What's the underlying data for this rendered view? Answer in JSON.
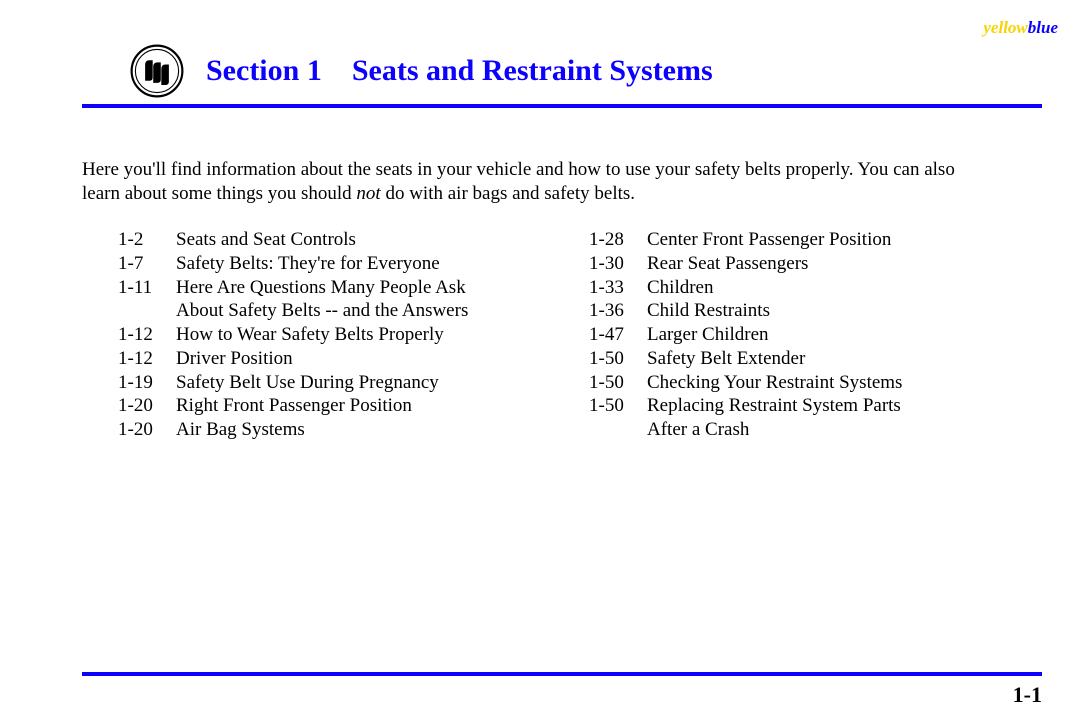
{
  "corner": {
    "yellow": "yellow",
    "blue": "blue"
  },
  "header": {
    "section_label": "Section 1",
    "title": "Seats and Restraint Systems"
  },
  "colors": {
    "accent": "#0c00ff",
    "yellow": "#f5d400",
    "text": "#000000",
    "background": "#ffffff"
  },
  "intro": {
    "line1": "Here you'll find information about the seats in your vehicle and how to use your safety belts properly. You can also",
    "line2a": "learn about some things you should ",
    "not": "not",
    "line2b": " do with air bags and safety belts."
  },
  "toc": {
    "left": [
      {
        "page": "1-2",
        "text": "Seats and Seat Controls"
      },
      {
        "page": "1-7",
        "text": "Safety Belts: They're for Everyone"
      },
      {
        "page": "1-11",
        "text": "Here Are Questions Many People Ask"
      },
      {
        "page": "",
        "text": "About Safety Belts -- and the Answers"
      },
      {
        "page": "1-12",
        "text": "How to Wear Safety Belts Properly"
      },
      {
        "page": "1-12",
        "text": "Driver Position"
      },
      {
        "page": "1-19",
        "text": "Safety Belt Use During Pregnancy"
      },
      {
        "page": "1-20",
        "text": "Right Front Passenger Position"
      },
      {
        "page": "1-20",
        "text": "Air Bag Systems"
      }
    ],
    "right": [
      {
        "page": "1-28",
        "text": "Center Front Passenger Position"
      },
      {
        "page": "1-30",
        "text": "Rear Seat Passengers"
      },
      {
        "page": "1-33",
        "text": "Children"
      },
      {
        "page": "1-36",
        "text": "Child Restraints"
      },
      {
        "page": "1-47",
        "text": "Larger Children"
      },
      {
        "page": "1-50",
        "text": "Safety Belt Extender"
      },
      {
        "page": "1-50",
        "text": "Checking Your Restraint Systems"
      },
      {
        "page": "1-50",
        "text": "Replacing Restraint System Parts"
      },
      {
        "page": "",
        "text": "After a Crash"
      }
    ]
  },
  "page_number": "1-1"
}
